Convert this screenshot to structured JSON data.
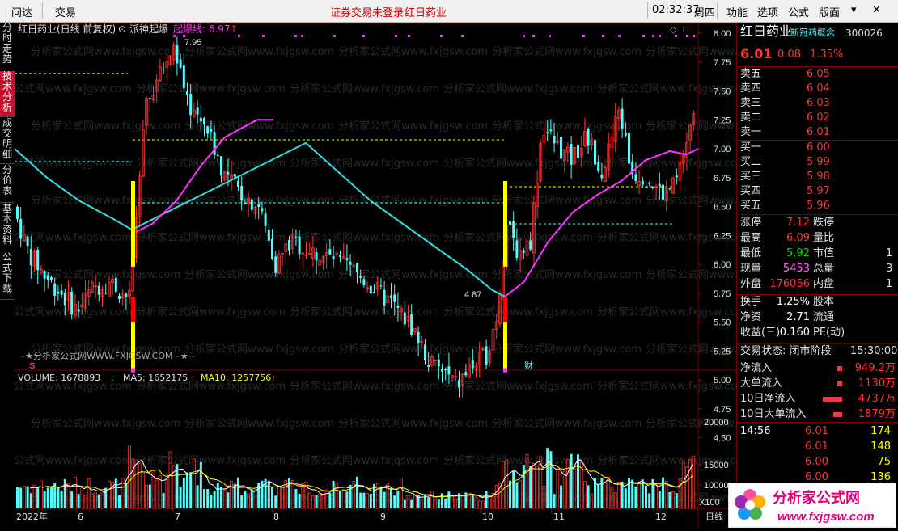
{
  "titlebar": {
    "menu_left": [
      "问达",
      "交易"
    ],
    "notice": "证券交易未登录",
    "stock_name": "红日药业",
    "time": "02:32:37",
    "weekday": "周四",
    "menu_right": [
      "功能",
      "选项",
      "公式",
      "版面"
    ]
  },
  "left_tabs": [
    "分时走势",
    "技术分析",
    "成交明细",
    "分价表",
    "基本资料",
    "公式下载"
  ],
  "chart_header": {
    "title": "红日药业(日线 前复权)",
    "indicator_name": "派神起爆",
    "indicator_label": "起爆线: 6.97",
    "high_marker": "7.95",
    "low_marker": "4.87",
    "watermark": "~★分析家公式网WWW.FXJGSW.COM~★~",
    "bg_watermark": "分析家公式网www.fxjgsw.com",
    "s_marker": "S",
    "cai_marker": "财"
  },
  "volume_header": {
    "volume": "VOLUME: 1678893",
    "ma5": "MA5: 1652175",
    "ma10": "MA10: 1257756",
    "unit": "X100"
  },
  "x_axis": {
    "labels": [
      "2022年",
      "6",
      "7",
      "8",
      "9",
      "10",
      "11",
      "12"
    ],
    "period": "日线"
  },
  "price_axis": [
    "8.00",
    "7.75",
    "7.50",
    "7.25",
    "7.00",
    "6.75",
    "6.50",
    "6.25",
    "6.00",
    "5.75",
    "5.50",
    "5.25",
    "5.00",
    "4.75",
    "4.50"
  ],
  "volume_axis": [
    "20000",
    "15000",
    "10000"
  ],
  "quote": {
    "name": "红日药业",
    "concept": "新冠药概念",
    "code": "300026",
    "price": "6.01",
    "change": "0.08",
    "change_pct": "1.35%",
    "asks": [
      {
        "label": "卖五",
        "price": "6.05"
      },
      {
        "label": "卖四",
        "price": "6.04"
      },
      {
        "label": "卖三",
        "price": "6.03"
      },
      {
        "label": "卖二",
        "price": "6.02"
      },
      {
        "label": "卖一",
        "price": "6.01"
      }
    ],
    "bids": [
      {
        "label": "买一",
        "price": "6.00"
      },
      {
        "label": "买二",
        "price": "5.99"
      },
      {
        "label": "买三",
        "price": "5.98"
      },
      {
        "label": "买四",
        "price": "5.97"
      },
      {
        "label": "买五",
        "price": "5.96"
      }
    ],
    "stats": [
      {
        "l1": "涨停",
        "v1": "7.12",
        "l2": "跌停",
        "v2": ""
      },
      {
        "l1": "最高",
        "v1": "6.09",
        "l2": "量比",
        "v2": ""
      },
      {
        "l1": "最低",
        "v1": "5.92",
        "l2": "市值",
        "v2": "1"
      },
      {
        "l1": "现量",
        "v1": "5453",
        "l2": "总量",
        "v2": "3"
      },
      {
        "l1": "外盘",
        "v1": "176056",
        "l2": "内盘",
        "v2": "1"
      }
    ],
    "stats2": [
      {
        "l1": "换手",
        "v1": "1.25%",
        "l2": "股本",
        "v2": ""
      },
      {
        "l1": "净资",
        "v1": "2.71",
        "l2": "流通",
        "v2": ""
      },
      {
        "l1": "收益(三)",
        "v1": "0.160",
        "l2": "PE(动)",
        "v2": ""
      }
    ],
    "trade_status": "交易状态: 闭市阶段",
    "trade_time": "15:30:00",
    "flows": [
      {
        "label": "净流入",
        "value": "949.2万",
        "bar": 0.08
      },
      {
        "label": "大单流入",
        "value": "1130万",
        "bar": 0.1
      },
      {
        "label": "10日净流入",
        "value": "4737万",
        "bar": 0.9
      },
      {
        "label": "10日大单流入",
        "value": "1879万",
        "bar": 0.3
      }
    ],
    "ticks": [
      {
        "time": "14:56",
        "price": "6.01",
        "vol": "174"
      },
      {
        "time": "",
        "price": "6.01",
        "vol": "148"
      },
      {
        "time": "",
        "price": "6.00",
        "vol": "75"
      },
      {
        "time": "",
        "price": "6.00",
        "vol": "136"
      }
    ]
  },
  "logo": {
    "text": "分析家公式网",
    "url": "www.fxjgsw.com"
  },
  "colors": {
    "up": "#ff3333",
    "down": "#54fcfc",
    "ma_cyan": "#33dddd",
    "ma_purple": "#ff33ff",
    "yellow": "#ffff00"
  }
}
